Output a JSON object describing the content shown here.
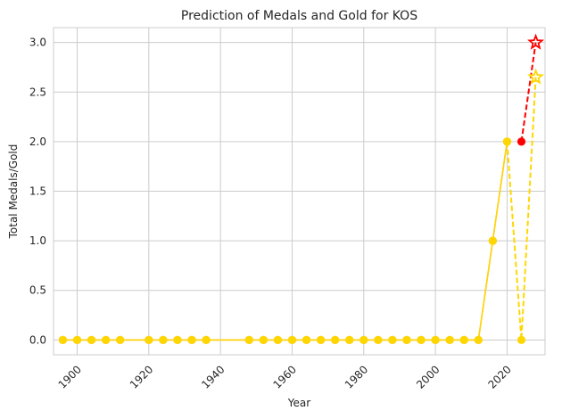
{
  "chart_data": {
    "type": "line",
    "title": "Prediction of Medals and Gold for KOS",
    "xlabel": "Year",
    "ylabel": "Total Medals/Gold",
    "xlim": [
      1893.4,
      2030.6
    ],
    "ylim": [
      -0.15,
      3.15
    ],
    "xticks": [
      1900,
      1920,
      1940,
      1960,
      1980,
      2000,
      2020
    ],
    "xtick_labels": [
      "1900",
      "1920",
      "1940",
      "1960",
      "1980",
      "2000",
      "2020"
    ],
    "yticks": [
      0.0,
      0.5,
      1.0,
      1.5,
      2.0,
      2.5,
      3.0
    ],
    "ytick_labels": [
      "0.0",
      "0.5",
      "1.0",
      "1.5",
      "2.0",
      "2.5",
      "3.0"
    ],
    "grid": true,
    "series": [
      {
        "kind": "historical-medals",
        "color": "#f28e2b",
        "x": [
          1896,
          1900,
          1904,
          1908,
          1912,
          1920,
          1924,
          1928,
          1932,
          1936,
          1948,
          1952,
          1956,
          1960,
          1964,
          1968,
          1972,
          1976,
          1980,
          1984,
          1988,
          1992,
          1996,
          2000,
          2004,
          2008,
          2012,
          2016,
          2020
        ],
        "values": [
          0,
          0,
          0,
          0,
          0,
          0,
          0,
          0,
          0,
          0,
          0,
          0,
          0,
          0,
          0,
          0,
          0,
          0,
          0,
          0,
          0,
          0,
          0,
          0,
          0,
          0,
          0,
          1,
          2
        ]
      },
      {
        "kind": "predicted-medals",
        "color": "#ff0000",
        "x": [
          2024,
          2028
        ],
        "values": [
          2,
          3
        ]
      },
      {
        "kind": "historical-gold",
        "color": "#ffd700",
        "x": [
          1896,
          1900,
          1904,
          1908,
          1912,
          1920,
          1924,
          1928,
          1932,
          1936,
          1948,
          1952,
          1956,
          1960,
          1964,
          1968,
          1972,
          1976,
          1980,
          1984,
          1988,
          1992,
          1996,
          2000,
          2004,
          2008,
          2012,
          2016,
          2020
        ],
        "values": [
          0,
          0,
          0,
          0,
          0,
          0,
          0,
          0,
          0,
          0,
          0,
          0,
          0,
          0,
          0,
          0,
          0,
          0,
          0,
          0,
          0,
          0,
          0,
          0,
          0,
          0,
          0,
          1,
          2
        ]
      },
      {
        "kind": "predicted-gold",
        "color": "#ffd700",
        "x": [
          2020,
          2024,
          2028
        ],
        "values": [
          2,
          0,
          2.65
        ]
      }
    ]
  }
}
